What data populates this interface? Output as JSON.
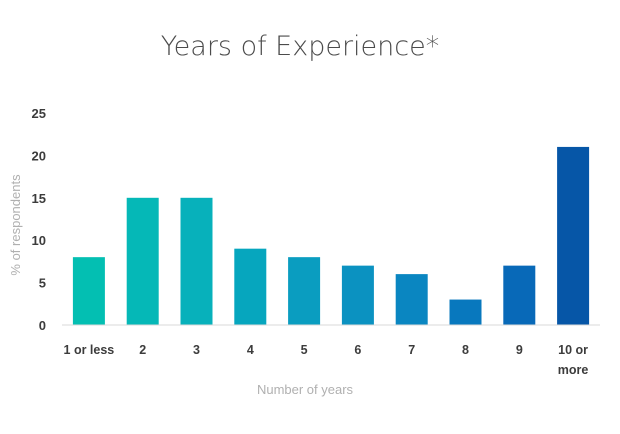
{
  "chart_data": {
    "type": "bar",
    "title": "Years of Experience*",
    "xlabel": "Number of years",
    "ylabel": "% of respondents",
    "categories": [
      "1 or less",
      "2",
      "3",
      "4",
      "5",
      "6",
      "7",
      "8",
      "9",
      "10 or more"
    ],
    "category_lines": [
      [
        "1 or less"
      ],
      [
        "2"
      ],
      [
        "3"
      ],
      [
        "4"
      ],
      [
        "5"
      ],
      [
        "6"
      ],
      [
        "7"
      ],
      [
        "8"
      ],
      [
        "9"
      ],
      [
        "10 or",
        "more"
      ]
    ],
    "values": [
      8,
      15,
      15,
      9,
      8,
      7,
      6,
      3,
      7,
      21
    ],
    "colors": [
      "#03bfb2",
      "#05b8b7",
      "#07b1bb",
      "#06a6be",
      "#0a9dc0",
      "#0b92c1",
      "#0a86c1",
      "#0878be",
      "#0869b8",
      "#0656a7"
    ],
    "yticks": [
      0,
      5,
      10,
      15,
      20,
      25
    ],
    "ylim": [
      0,
      25
    ],
    "grid": false,
    "legend": "none"
  }
}
